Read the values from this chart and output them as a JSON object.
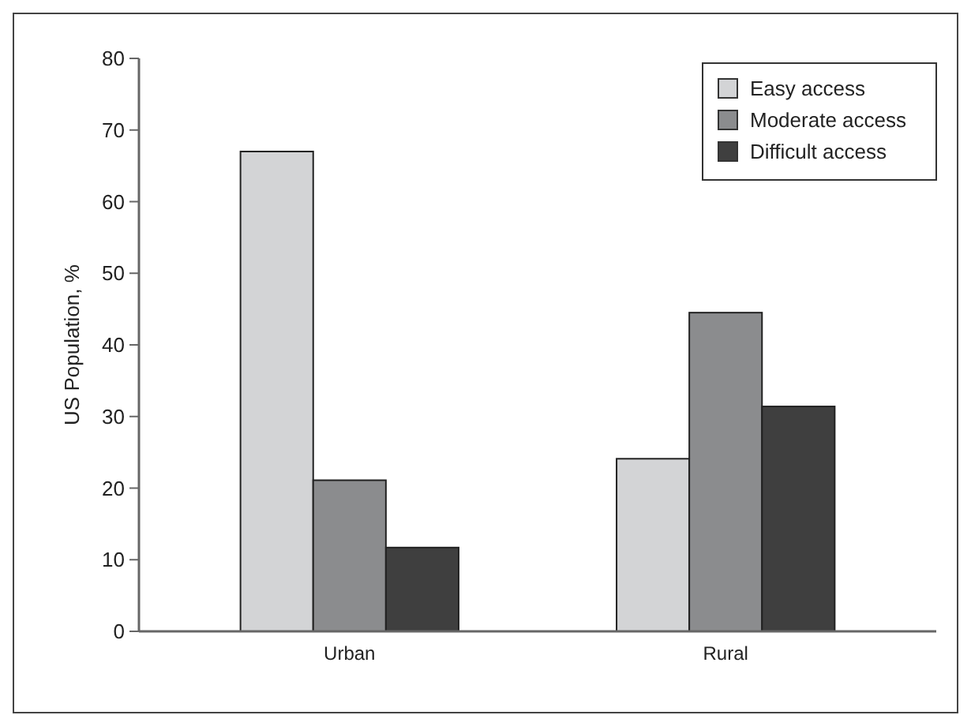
{
  "chart_data": {
    "type": "bar",
    "ylabel": "US Population, %",
    "categories": [
      "Urban",
      "Rural"
    ],
    "series": [
      {
        "name": "Easy access",
        "color": "#d3d4d6",
        "values": [
          67,
          24.1
        ]
      },
      {
        "name": "Moderate access",
        "color": "#8b8c8e",
        "values": [
          21.1,
          44.5
        ]
      },
      {
        "name": "Difficult access",
        "color": "#3f3f3f",
        "values": [
          11.7,
          31.4
        ]
      }
    ],
    "ylim": [
      0,
      80
    ],
    "yticks": [
      0,
      10,
      20,
      30,
      40,
      50,
      60,
      70,
      80
    ],
    "grid": false,
    "legend": "top right"
  }
}
